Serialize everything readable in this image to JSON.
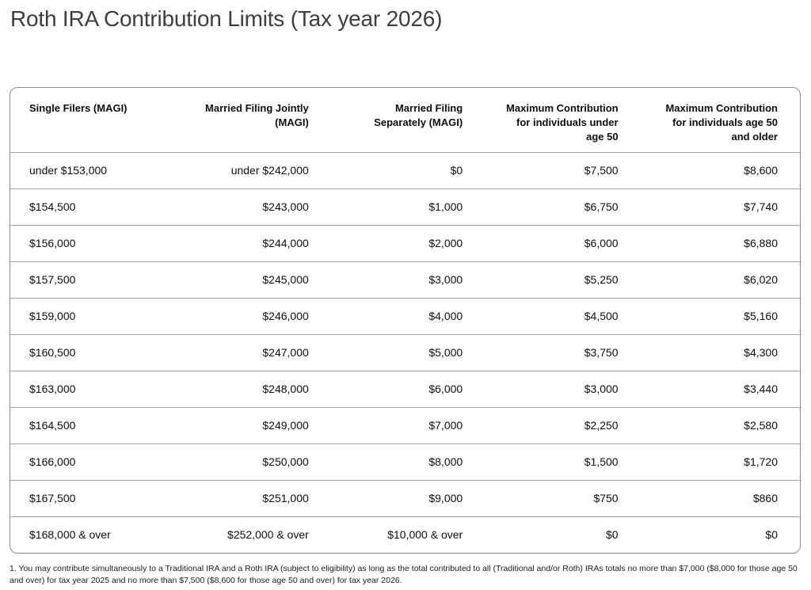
{
  "page": {
    "title": "Roth IRA Contribution Limits (Tax year 2026)"
  },
  "table": {
    "columns": [
      {
        "label": "Single Filers (MAGI)"
      },
      {
        "label": "Married Filing Jointly (MAGI)"
      },
      {
        "label": "Married Filing Separately (MAGI)"
      },
      {
        "label": "Maximum Contribution for individuals under age 50"
      },
      {
        "label": "Maximum Contribution for individuals age 50 and older"
      }
    ],
    "rows": [
      [
        "under $153,000",
        "under $242,000",
        "$0",
        "$7,500",
        "$8,600"
      ],
      [
        "$154,500",
        "$243,000",
        "$1,000",
        "$6,750",
        "$7,740"
      ],
      [
        "$156,000",
        "$244,000",
        "$2,000",
        "$6,000",
        "$6,880"
      ],
      [
        "$157,500",
        "$245,000",
        "$3,000",
        "$5,250",
        "$6,020"
      ],
      [
        "$159,000",
        "$246,000",
        "$4,000",
        "$4,500",
        "$5,160"
      ],
      [
        "$160,500",
        "$247,000",
        "$5,000",
        "$3,750",
        "$4,300"
      ],
      [
        "$163,000",
        "$248,000",
        "$6,000",
        "$3,000",
        "$3,440"
      ],
      [
        "$164,500",
        "$249,000",
        "$7,000",
        "$2,250",
        "$2,580"
      ],
      [
        "$166,000",
        "$250,000",
        "$8,000",
        "$1,500",
        "$1,720"
      ],
      [
        "$167,500",
        "$251,000",
        "$9,000",
        "$750",
        "$860"
      ],
      [
        "$168,000 & over",
        "$252,000 & over",
        "$10,000 & over",
        "$0",
        "$0"
      ]
    ]
  },
  "footnote": "1. You may contribute simultaneously to a Traditional IRA and a Roth IRA (subject to eligibility) as long as the total contributed to all (Traditional and/or Roth) IRAs totals no more than $7,000 ($8,000 for those age 50 and over) for tax year 2025 and no more than $7,500 ($8,600 for those age 50 and over) for tax year 2026.",
  "colors": {
    "title_text": "#3e3e3e",
    "body_text": "#0e0e0e",
    "card_border": "#878f94",
    "row_divider": "#9aa2a6",
    "background": "#ffffff"
  }
}
